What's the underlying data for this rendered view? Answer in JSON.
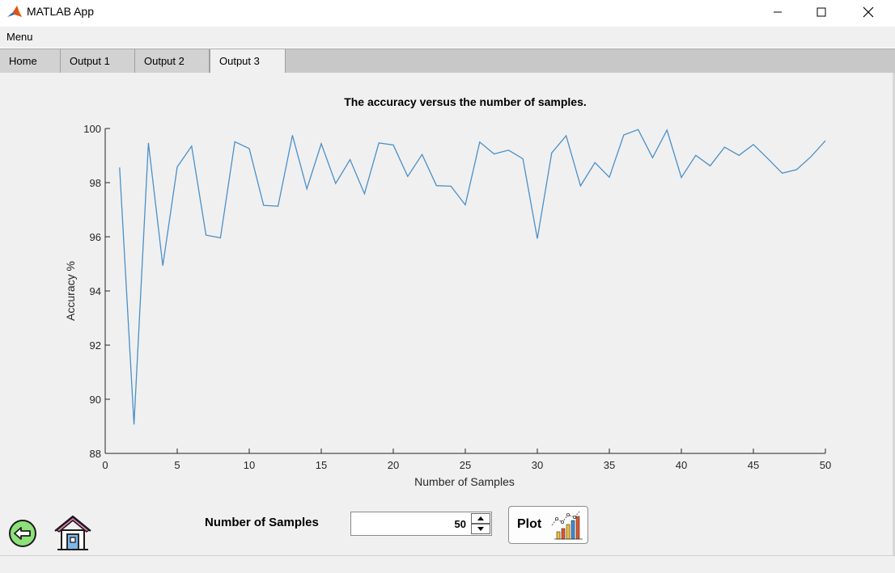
{
  "window": {
    "title": "MATLAB App",
    "controls": [
      "minimize",
      "maximize",
      "close"
    ]
  },
  "menu": {
    "label": "Menu"
  },
  "tabs": [
    {
      "label": "Home",
      "active": false
    },
    {
      "label": "Output 1",
      "active": false
    },
    {
      "label": "Output 2",
      "active": false
    },
    {
      "label": "Output 3",
      "active": true
    }
  ],
  "chart_data": {
    "type": "line",
    "title": "The accuracy versus the number of samples.",
    "xlabel": "Number of Samples",
    "ylabel": "Accuracy %",
    "xlim": [
      0,
      50
    ],
    "ylim": [
      88,
      100
    ],
    "xticks": [
      0,
      5,
      10,
      15,
      20,
      25,
      30,
      35,
      40,
      45,
      50
    ],
    "yticks": [
      88,
      90,
      92,
      94,
      96,
      98,
      100
    ],
    "grid": false,
    "line_color": "#4a90c8",
    "series": [
      {
        "x": [
          1,
          2,
          3,
          4,
          5,
          6,
          7,
          8,
          9,
          10,
          11,
          12,
          13,
          14,
          15,
          16,
          17,
          18,
          19,
          20,
          21,
          22,
          23,
          24,
          25,
          26,
          27,
          28,
          29,
          30,
          31,
          32,
          33,
          34,
          35,
          36,
          37,
          38,
          39,
          40,
          41,
          42,
          43,
          44,
          45,
          46,
          47,
          48,
          49,
          50
        ],
        "values": [
          98.56,
          89.07,
          99.47,
          94.93,
          98.58,
          99.35,
          96.06,
          95.96,
          99.51,
          99.26,
          97.16,
          97.13,
          99.75,
          97.77,
          99.44,
          97.97,
          98.85,
          97.59,
          99.47,
          99.39,
          98.23,
          99.04,
          97.89,
          97.87,
          97.18,
          99.5,
          99.06,
          99.2,
          98.88,
          95.93,
          99.1,
          99.73,
          97.88,
          98.74,
          98.2,
          99.76,
          99.96,
          98.92,
          99.94,
          98.19,
          99.01,
          98.62,
          99.31,
          99.01,
          99.41,
          98.89,
          98.35,
          98.48,
          98.96,
          99.55
        ]
      }
    ]
  },
  "controls": {
    "samples_label": "Number of Samples",
    "samples_value": "50",
    "plot_label": "Plot"
  },
  "icons": {
    "back": "arrow-left-circle-icon",
    "home": "house-icon",
    "plot": "chart-icon"
  }
}
